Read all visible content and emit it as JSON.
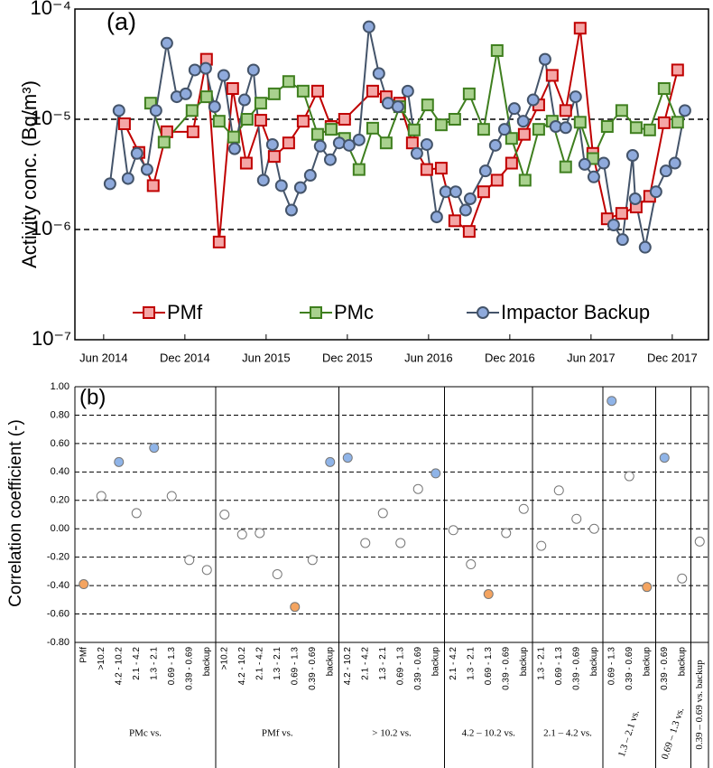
{
  "chart_data": [
    {
      "type": "line",
      "title": "(a)",
      "ylabel": "Activity conc. (Bq/m³)",
      "log_y": true,
      "grid": true,
      "legend": "bottom",
      "xlim": [
        2014.24,
        2018.14
      ],
      "xticks": [
        {
          "value": 2014.417,
          "label": "Jun 2014"
        },
        {
          "value": 2014.917,
          "label": "Dec 2014"
        },
        {
          "value": 2015.417,
          "label": "Jun 2015"
        },
        {
          "value": 2015.917,
          "label": "Dec 2015"
        },
        {
          "value": 2016.417,
          "label": "Jun 2016"
        },
        {
          "value": 2016.917,
          "label": "Dec 2016"
        },
        {
          "value": 2017.417,
          "label": "Jun 2017"
        },
        {
          "value": 2017.917,
          "label": "Dec 2017"
        }
      ],
      "ylim": [
        1e-07,
        0.0001
      ],
      "yticks": [
        {
          "value": 1e-07,
          "label": "10⁻⁷"
        },
        {
          "value": 1e-06,
          "label": "10⁻⁶"
        },
        {
          "value": 1e-05,
          "label": "10⁻⁵"
        },
        {
          "value": 0.0001,
          "label": "10⁻⁴"
        }
      ],
      "series": [
        {
          "name": "PMf",
          "color": "#c00000",
          "fill": "#f4a6a6",
          "marker": "square",
          "x": [
            2014.545,
            2014.634,
            2014.722,
            2014.806,
            2014.967,
            2015.05,
            2015.128,
            2015.211,
            2015.295,
            2015.384,
            2015.467,
            2015.556,
            2015.645,
            2015.734,
            2015.817,
            2015.9,
            2016.073,
            2016.156,
            2016.239,
            2016.317,
            2016.406,
            2016.495,
            2016.578,
            2016.667,
            2016.756,
            2016.839,
            2016.928,
            2017.006,
            2017.095,
            2017.178,
            2017.261,
            2017.35,
            2017.428,
            2017.517,
            2017.606,
            2017.695,
            2017.778,
            2017.867,
            2017.95
          ],
          "values": [
            9.1e-06,
            5e-06,
            2.5e-06,
            7.7e-06,
            7.7e-06,
            3.5e-05,
            7.7e-07,
            1.9e-05,
            4e-06,
            9.8e-06,
            4.6e-06,
            6.1e-06,
            9.6e-06,
            1.8e-05,
            8.6e-06,
            1e-05,
            1.8e-05,
            1.6e-05,
            1.4e-05,
            6.1e-06,
            3.5e-06,
            3.6e-06,
            1.2e-06,
            9.6e-07,
            2.2e-06,
            2.8e-06,
            4e-06,
            7.3e-06,
            1.35e-05,
            2.5e-05,
            1.2e-05,
            6.7e-05,
            4.9e-06,
            1.25e-06,
            1.4e-06,
            1.6e-06,
            2e-06,
            9.3e-06,
            2.8e-05
          ]
        },
        {
          "name": "PMc",
          "color": "#3f7f1f",
          "fill": "#a9d18e",
          "marker": "square",
          "x": [
            2014.706,
            2014.789,
            2014.961,
            2015.05,
            2015.128,
            2015.217,
            2015.3,
            2015.384,
            2015.467,
            2015.556,
            2015.645,
            2015.734,
            2015.817,
            2015.9,
            2015.989,
            2016.073,
            2016.156,
            2016.239,
            2016.328,
            2016.411,
            2016.495,
            2016.578,
            2016.667,
            2016.756,
            2016.839,
            2016.928,
            2017.011,
            2017.095,
            2017.178,
            2017.261,
            2017.35,
            2017.428,
            2017.517,
            2017.606,
            2017.695,
            2017.778,
            2017.867,
            2017.95
          ],
          "values": [
            1.4e-05,
            6.2e-06,
            1.2e-05,
            1.6e-05,
            9.6e-06,
            6.9e-06,
            1e-05,
            1.4e-05,
            1.7e-05,
            2.2e-05,
            1.8e-05,
            7.3e-06,
            8.1e-06,
            6.7e-06,
            3.5e-06,
            8.3e-06,
            6.1e-06,
            1.3e-05,
            8e-06,
            1.35e-05,
            8.9e-06,
            1e-05,
            1.7e-05,
            8.1e-06,
            4.2e-05,
            6.7e-06,
            2.8e-06,
            8.1e-06,
            9.6e-06,
            3.7e-06,
            9.4e-06,
            4.4e-06,
            8.6e-06,
            1.2e-05,
            8.4e-06,
            8e-06,
            1.9e-05,
            9.4e-06
          ]
        },
        {
          "name": "Impactor Backup",
          "color": "#44546a",
          "fill": "#8faadc",
          "marker": "circle",
          "x": [
            2014.456,
            2014.511,
            2014.567,
            2014.622,
            2014.684,
            2014.739,
            2014.806,
            2014.867,
            2014.922,
            2014.978,
            2015.045,
            2015.1,
            2015.156,
            2015.223,
            2015.284,
            2015.339,
            2015.4,
            2015.456,
            2015.511,
            2015.573,
            2015.628,
            2015.689,
            2015.75,
            2015.812,
            2015.867,
            2015.928,
            2015.989,
            2016.05,
            2016.111,
            2016.167,
            2016.228,
            2016.289,
            2016.345,
            2016.406,
            2016.467,
            2016.522,
            2016.584,
            2016.645,
            2016.673,
            2016.767,
            2016.828,
            2016.884,
            2016.945,
            2017.0,
            2017.061,
            2017.134,
            2017.2,
            2017.261,
            2017.322,
            2017.378,
            2017.434,
            2017.495,
            2017.556,
            2017.611,
            2017.673,
            2017.689,
            2017.75,
            2017.817,
            2017.878,
            2017.933,
            2017.995
          ],
          "values": [
            2.6e-06,
            1.2e-05,
            2.9e-06,
            4.9e-06,
            3.5e-06,
            1.2e-05,
            4.9e-05,
            1.6e-05,
            1.7e-05,
            2.8e-05,
            2.9e-05,
            1.3e-05,
            2.5e-05,
            5.4e-06,
            1.5e-05,
            2.8e-05,
            2.8e-06,
            5.9e-06,
            2.5e-06,
            1.5e-06,
            2.4e-06,
            3.1e-06,
            5.7e-06,
            4.3e-06,
            6.1e-06,
            5.8e-06,
            6.5e-06,
            6.9e-05,
            2.6e-05,
            1.4e-05,
            1.3e-05,
            1.8e-05,
            4.9e-06,
            5.9e-06,
            1.3e-06,
            2.2e-06,
            2.2e-06,
            1.5e-06,
            1.9e-06,
            3.4e-06,
            5.8e-06,
            8.1e-06,
            1.25e-05,
            9.6e-06,
            1.5e-05,
            3.5e-05,
            8.6e-06,
            8.4e-06,
            1.6e-05,
            3.9e-06,
            3e-06,
            4e-06,
            1.1e-06,
            8.1e-07,
            4.7e-06,
            1.9e-06,
            6.9e-07,
            2.2e-06,
            3.4e-06,
            4e-06,
            1.2e-05
          ]
        }
      ]
    },
    {
      "type": "grouped_dots",
      "title": "(b)",
      "ylabel": "Correlation coefficient (-)",
      "grid": true,
      "ylim": [
        -0.8,
        1.0
      ],
      "yticks": [
        {
          "value": -0.8,
          "label": "-0.80"
        },
        {
          "value": -0.6,
          "label": "-0.60"
        },
        {
          "value": -0.4,
          "label": "-0.40"
        },
        {
          "value": -0.2,
          "label": "-0.20"
        },
        {
          "value": 0,
          "label": "0.00"
        },
        {
          "value": 0.2,
          "label": "0.20"
        },
        {
          "value": 0.4,
          "label": "0.40"
        },
        {
          "value": 0.6,
          "label": "0.60"
        },
        {
          "value": 0.8,
          "label": "0.80"
        },
        {
          "value": 1.0,
          "label": "1.00"
        }
      ],
      "groups": [
        {
          "label": "PMc vs.",
          "categories": [
            "PMf",
            ">10.2",
            "4.2 - 10.2",
            "2.1 - 4.2",
            "1.3 - 2.1",
            "0.69 - 1.3",
            "0.39 - 0.69",
            "backup"
          ],
          "values": [
            -0.39,
            0.23,
            0.47,
            0.11,
            0.57,
            0.23,
            -0.22,
            -0.29
          ],
          "colors": [
            "#f4a460",
            "#ffffff",
            "#8fb4e8",
            "#ffffff",
            "#8fb4e8",
            "#ffffff",
            "#ffffff",
            "#ffffff"
          ]
        },
        {
          "label": "PMf vs.",
          "categories": [
            ">10.2",
            "4.2 - 10.2",
            "2.1 - 4.2",
            "1.3 - 2.1",
            "0.69 - 1.3",
            "0.39 - 0.69",
            "backup"
          ],
          "values": [
            0.1,
            -0.04,
            -0.03,
            -0.32,
            -0.55,
            -0.22,
            0.47
          ],
          "colors": [
            "#ffffff",
            "#ffffff",
            "#ffffff",
            "#ffffff",
            "#f4a460",
            "#ffffff",
            "#8fb4e8"
          ]
        },
        {
          "label": "> 10.2 vs.",
          "categories": [
            "4.2 - 10.2",
            "2.1 - 4.2",
            "1.3 - 2.1",
            "0.69 - 1.3",
            "0.39 - 0.69",
            "backup"
          ],
          "values": [
            0.5,
            -0.1,
            0.11,
            -0.1,
            0.28,
            0.39
          ],
          "colors": [
            "#8fb4e8",
            "#ffffff",
            "#ffffff",
            "#ffffff",
            "#ffffff",
            "#8fb4e8"
          ]
        },
        {
          "label": "4.2 – 10.2 vs.",
          "categories": [
            "2.1 - 4.2",
            "1.3 - 2.1",
            "0.69 - 1.3",
            "0.39 - 0.69",
            "backup"
          ],
          "values": [
            -0.01,
            -0.25,
            -0.46,
            -0.03,
            0.14
          ],
          "colors": [
            "#ffffff",
            "#ffffff",
            "#f4a460",
            "#ffffff",
            "#ffffff"
          ]
        },
        {
          "label": "2.1 – 4.2 vs.",
          "categories": [
            "1.3 - 2.1",
            "0.69 - 1.3",
            "0.39 - 0.69",
            "backup"
          ],
          "values": [
            -0.12,
            0.27,
            0.07,
            0
          ],
          "colors": [
            "#ffffff",
            "#ffffff",
            "#ffffff",
            "#ffffff"
          ]
        },
        {
          "label": "1.3 – 2.1 vs.",
          "categories": [
            "0.69 - 1.3",
            "0.39 - 0.69",
            "backup"
          ],
          "values": [
            0.9,
            0.37,
            -0.41
          ],
          "colors": [
            "#8fb4e8",
            "#ffffff",
            "#f4a460"
          ]
        },
        {
          "label": "0.69 – 1.3 vs.",
          "categories": [
            "0.39 - 0.69",
            "backup"
          ],
          "values": [
            0.5,
            -0.35
          ],
          "colors": [
            "#8fb4e8",
            "#ffffff"
          ]
        },
        {
          "label": "0.39 – 0.69 vs. backup",
          "categories": [
            null
          ],
          "values": [
            -0.09
          ],
          "colors": [
            "#ffffff"
          ]
        }
      ]
    }
  ]
}
